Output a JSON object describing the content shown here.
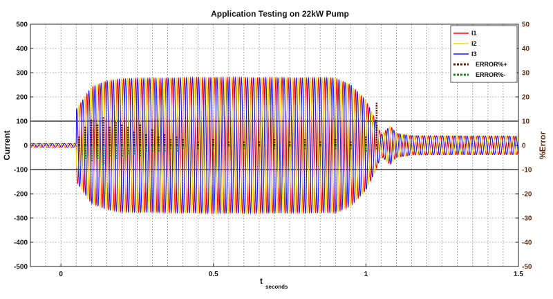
{
  "chart_data": {
    "type": "line",
    "title": "Application Testing on 22kW Pump",
    "xlabel": "t",
    "xlabel_sub": "seconds",
    "ylabel": "Current",
    "ylabel_right": "%Error",
    "xlim": [
      -0.1,
      1.5
    ],
    "ylim": [
      -500,
      500
    ],
    "ylim_right": [
      -50,
      50
    ],
    "x_ticks": [
      "0",
      "0.5",
      "1",
      "1.5"
    ],
    "x_tick_values": [
      0,
      0.5,
      1,
      1.5
    ],
    "y_ticks": [
      "500",
      "400",
      "300",
      "200",
      "100",
      "0",
      "-100",
      "-200",
      "-300",
      "-400",
      "-500"
    ],
    "y_tick_values": [
      500,
      400,
      300,
      200,
      100,
      0,
      -100,
      -200,
      -300,
      -400,
      -500
    ],
    "y_right_ticks": [
      "50",
      "40",
      "30",
      "20",
      "10",
      "0",
      "-10",
      "-20",
      "-30",
      "-40",
      "-50"
    ],
    "y_right_tick_values": [
      50,
      40,
      30,
      20,
      10,
      0,
      -10,
      -20,
      -30,
      -40,
      -50
    ],
    "grid": true,
    "legend_position": "top-right",
    "reference_lines": [
      100,
      -100
    ],
    "frequency_hz": 50,
    "series": [
      {
        "name": "I1",
        "color": "#ff0000",
        "phase_deg": 0,
        "style": "solid",
        "envelope": [
          [
            -0.1,
            8
          ],
          [
            0.05,
            8
          ],
          [
            0.051,
            150
          ],
          [
            0.1,
            240
          ],
          [
            0.15,
            265
          ],
          [
            0.2,
            275
          ],
          [
            0.5,
            280
          ],
          [
            0.9,
            278
          ],
          [
            0.95,
            250
          ],
          [
            1.0,
            185
          ],
          [
            1.03,
            110
          ],
          [
            1.05,
            45
          ],
          [
            1.08,
            80
          ],
          [
            1.1,
            50
          ],
          [
            1.15,
            40
          ],
          [
            1.5,
            38
          ]
        ]
      },
      {
        "name": "I2",
        "color": "#ffd500",
        "phase_deg": 120,
        "style": "solid",
        "envelope": [
          [
            -0.1,
            8
          ],
          [
            0.05,
            8
          ],
          [
            0.051,
            150
          ],
          [
            0.1,
            240
          ],
          [
            0.15,
            265
          ],
          [
            0.2,
            275
          ],
          [
            0.5,
            280
          ],
          [
            0.9,
            278
          ],
          [
            0.95,
            250
          ],
          [
            1.0,
            185
          ],
          [
            1.03,
            110
          ],
          [
            1.05,
            45
          ],
          [
            1.08,
            80
          ],
          [
            1.1,
            50
          ],
          [
            1.15,
            40
          ],
          [
            1.5,
            38
          ]
        ]
      },
      {
        "name": "I3",
        "color": "#1c1cff",
        "phase_deg": 240,
        "style": "solid",
        "envelope": [
          [
            -0.1,
            8
          ],
          [
            0.05,
            8
          ],
          [
            0.051,
            150
          ],
          [
            0.1,
            240
          ],
          [
            0.15,
            265
          ],
          [
            0.2,
            275
          ],
          [
            0.5,
            280
          ],
          [
            0.9,
            278
          ],
          [
            0.95,
            250
          ],
          [
            1.0,
            185
          ],
          [
            1.03,
            110
          ],
          [
            1.05,
            45
          ],
          [
            1.08,
            80
          ],
          [
            1.1,
            50
          ],
          [
            1.15,
            40
          ],
          [
            1.5,
            38
          ]
        ]
      },
      {
        "name": "ERROR%+",
        "color": "#5a1e08",
        "style": "dotted",
        "axis": "right",
        "x": [
          0.06,
          0.08,
          0.1,
          0.12,
          0.14,
          0.16,
          0.18,
          0.2,
          0.22,
          0.24,
          0.26,
          0.28,
          0.3,
          0.32,
          0.34,
          0.36,
          0.38,
          0.4,
          0.45,
          0.5,
          0.55,
          0.6,
          0.65,
          0.7,
          0.75,
          0.8,
          0.85,
          0.9,
          0.95,
          1.0,
          1.035
        ],
        "values": [
          4,
          8,
          11,
          9,
          12,
          8,
          10,
          9,
          8,
          6,
          9,
          5,
          7,
          4,
          5,
          3,
          4,
          3,
          2,
          3,
          2,
          2,
          2,
          3,
          2,
          3,
          2,
          3,
          2,
          4,
          18
        ]
      },
      {
        "name": "ERROR%-",
        "color": "#1a7a1a",
        "style": "dotted",
        "axis": "right",
        "x": [
          0.06,
          0.08,
          0.1,
          0.12,
          0.14,
          0.16,
          0.18,
          0.2,
          0.22,
          0.24,
          0.26,
          0.28,
          0.3,
          0.32,
          0.34,
          0.36,
          0.38,
          0.4,
          0.45,
          0.5,
          0.55,
          0.6,
          0.65,
          0.7,
          0.75,
          0.8,
          0.85,
          0.9,
          0.95,
          1.0,
          1.035
        ],
        "values": [
          -3,
          -6,
          -7,
          -6,
          -8,
          -5,
          -6,
          -5,
          -4,
          -4,
          -5,
          -3,
          -3,
          -3,
          -3,
          -2,
          -3,
          -2,
          -2,
          -2,
          -1,
          -2,
          -1,
          -2,
          -1,
          -2,
          -1,
          -2,
          -2,
          -3,
          -2
        ]
      }
    ]
  }
}
